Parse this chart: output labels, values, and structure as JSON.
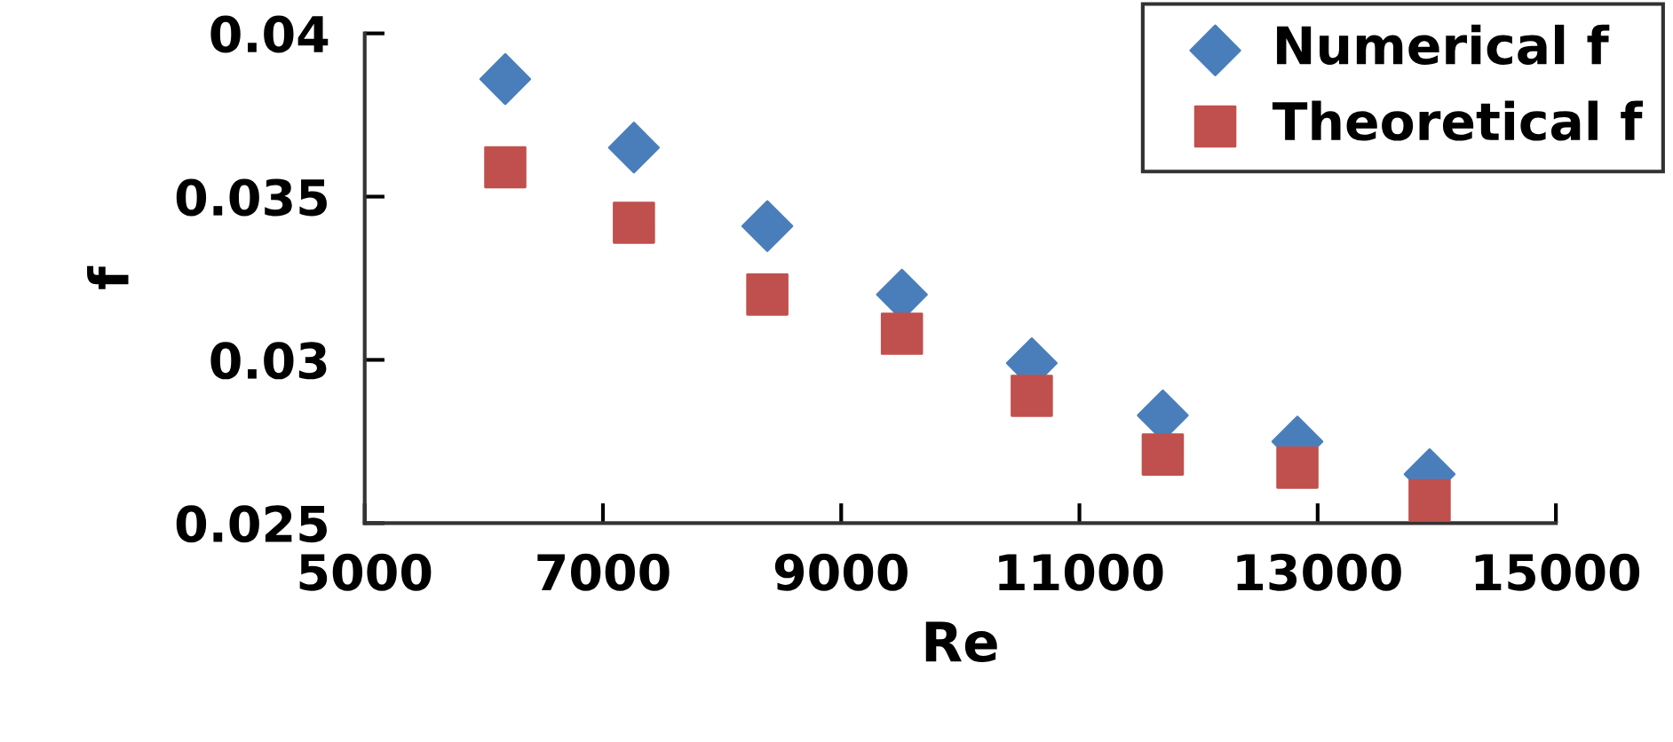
{
  "chart_data": {
    "type": "scatter",
    "xlabel": "Re",
    "ylabel": "f",
    "xlim": [
      5000,
      15000
    ],
    "xticks": [
      5000,
      7000,
      9000,
      11000,
      13000,
      15000
    ],
    "ylim": [
      0.025,
      0.04
    ],
    "yticks": [
      0.025,
      0.03,
      0.035,
      0.04
    ],
    "grid": false,
    "legend": "top right",
    "x": [
      6180,
      7260,
      8380,
      9510,
      10600,
      11700,
      12830,
      13940
    ],
    "series": [
      {
        "name": "Numerical f",
        "color": "#4a7ebb",
        "marker": "diamond",
        "values": [
          0.0386,
          0.0365,
          0.0341,
          0.032,
          0.0299,
          0.0283,
          0.0275,
          0.0265
        ]
      },
      {
        "name": "Theoretical f",
        "color": "#c0504d",
        "marker": "square",
        "values": [
          0.0359,
          0.0342,
          0.032,
          0.0308,
          0.0289,
          0.0271,
          0.0267,
          0.0257
        ]
      }
    ]
  }
}
